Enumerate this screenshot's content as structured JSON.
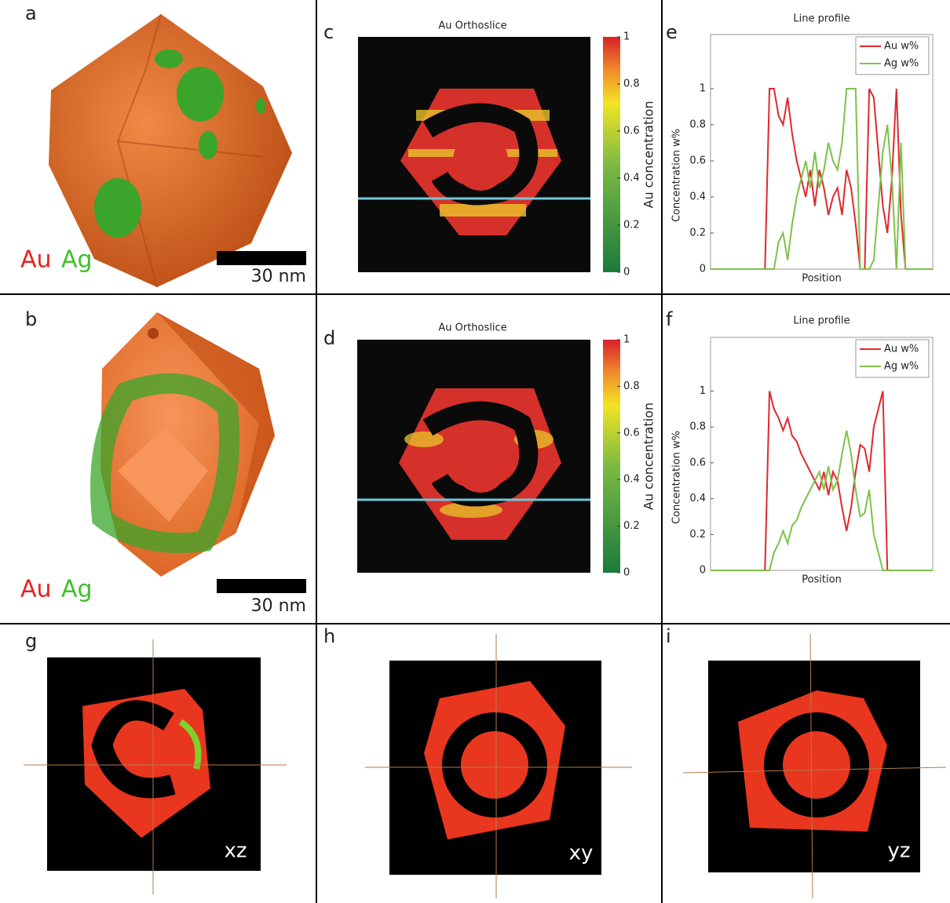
{
  "panel_labels": [
    "a",
    "b",
    "c",
    "d",
    "e",
    "f",
    "g",
    "h",
    "i"
  ],
  "renders": [
    {
      "elements": [
        "Au",
        "Ag"
      ],
      "scale_bar": "30 nm"
    },
    {
      "elements": [
        "Au",
        "Ag"
      ],
      "scale_bar": "30 nm"
    }
  ],
  "orthoslices": [
    {
      "title": "Au Orthoslice",
      "colorbar_label": "Au concentration",
      "colorbar_lim": [
        0,
        1
      ],
      "colorbar_ticks": [
        0,
        0.2,
        0.4,
        0.6,
        0.8,
        1
      ]
    },
    {
      "title": "Au Orthoslice",
      "colorbar_label": "Au concentration",
      "colorbar_lim": [
        0,
        1
      ],
      "colorbar_ticks": [
        0,
        0.2,
        0.4,
        0.6,
        0.8,
        1
      ]
    }
  ],
  "sections": [
    "xz",
    "xy",
    "yz"
  ],
  "chart_data": [
    {
      "type": "line",
      "title": "Line profile",
      "xlabel": "Position",
      "ylabel": "Concentration w%",
      "ylim": [
        0,
        1.3
      ],
      "yticks": [
        0,
        0.2,
        0.4,
        0.6,
        0.8,
        1
      ],
      "legend": "upper right",
      "series": [
        {
          "name": "Au w%",
          "color": "#e0282e",
          "values": [
            0,
            0,
            0,
            0,
            0,
            0,
            0,
            0,
            0,
            0,
            0,
            0,
            0,
            1,
            1,
            0.85,
            0.8,
            0.95,
            0.75,
            0.6,
            0.5,
            0.4,
            0.55,
            0.35,
            0.55,
            0.45,
            0.3,
            0.4,
            0.45,
            0.3,
            0.55,
            0.45,
            0.25,
            0,
            0,
            1,
            0.95,
            0.65,
            0.35,
            0.2,
            0.5,
            1,
            0.3,
            0,
            0,
            0,
            0,
            0,
            0,
            0
          ]
        },
        {
          "name": "Ag w%",
          "color": "#7dc246",
          "values": [
            0,
            0,
            0,
            0,
            0,
            0,
            0,
            0,
            0,
            0,
            0,
            0,
            0,
            0,
            0,
            0.15,
            0.2,
            0.05,
            0.25,
            0.4,
            0.5,
            0.6,
            0.45,
            0.65,
            0.45,
            0.55,
            0.7,
            0.6,
            0.55,
            0.7,
            1,
            1,
            1,
            0,
            0,
            0,
            0.05,
            0.35,
            0.65,
            0.8,
            0.5,
            0,
            0.7,
            0,
            0,
            0,
            0,
            0,
            0,
            0
          ]
        }
      ]
    },
    {
      "type": "line",
      "title": "Line profile",
      "xlabel": "Position",
      "ylabel": "Concentration w%",
      "ylim": [
        0,
        1.3
      ],
      "yticks": [
        0,
        0.2,
        0.4,
        0.6,
        0.8,
        1
      ],
      "legend": "upper right",
      "series": [
        {
          "name": "Au w%",
          "color": "#e0282e",
          "values": [
            0,
            0,
            0,
            0,
            0,
            0,
            0,
            0,
            0,
            0,
            0,
            0,
            0,
            1,
            0.9,
            0.85,
            0.78,
            0.85,
            0.75,
            0.72,
            0.65,
            0.6,
            0.55,
            0.5,
            0.45,
            0.55,
            0.42,
            0.55,
            0.5,
            0.35,
            0.22,
            0.35,
            0.55,
            0.7,
            0.68,
            0.55,
            0.8,
            0.9,
            1,
            0,
            0,
            0,
            0,
            0,
            0,
            0,
            0,
            0,
            0,
            0
          ]
        },
        {
          "name": "Ag w%",
          "color": "#7dc246",
          "values": [
            0,
            0,
            0,
            0,
            0,
            0,
            0,
            0,
            0,
            0,
            0,
            0,
            0,
            0,
            0.1,
            0.15,
            0.22,
            0.15,
            0.25,
            0.28,
            0.35,
            0.4,
            0.45,
            0.5,
            0.55,
            0.45,
            0.58,
            0.45,
            0.5,
            0.65,
            0.78,
            0.65,
            0.45,
            0.3,
            0.32,
            0.45,
            0.2,
            0.1,
            0,
            0,
            0,
            0,
            0,
            0,
            0,
            0,
            0,
            0,
            0,
            0
          ]
        }
      ]
    }
  ]
}
